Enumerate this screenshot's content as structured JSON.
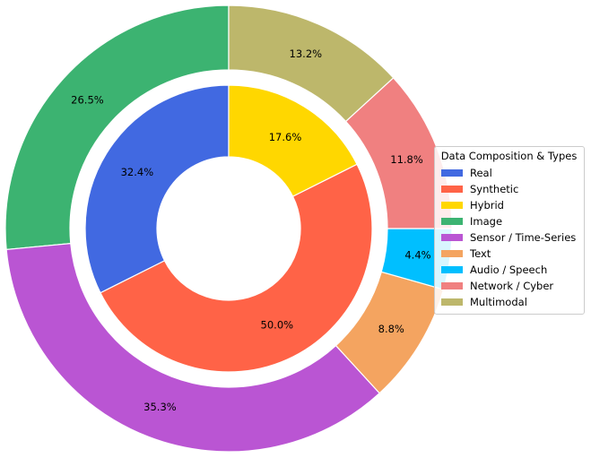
{
  "chart_data": {
    "type": "pie",
    "variant": "nested-donut",
    "title": "",
    "inner_ring": {
      "categories": [
        "Real",
        "Synthetic",
        "Hybrid"
      ],
      "values": [
        32.4,
        50.0,
        17.6
      ],
      "labels": [
        "32.4%",
        "50.0%",
        "17.6%"
      ],
      "colors": [
        "#4169E1",
        "#FF6347",
        "#FFD700"
      ]
    },
    "outer_ring": {
      "categories": [
        "Image",
        "Sensor / Time-Series",
        "Text",
        "Audio / Speech",
        "Network / Cyber",
        "Multimodal"
      ],
      "values": [
        26.5,
        35.3,
        8.8,
        4.4,
        11.8,
        13.2
      ],
      "labels": [
        "26.5%",
        "35.3%",
        "8.8%",
        "4.4%",
        "11.8%",
        "13.2%"
      ],
      "colors": [
        "#3CB371",
        "#BA55D3",
        "#F4A460",
        "#00BFFF",
        "#F08080",
        "#BDB76B"
      ]
    },
    "start_angle_deg": 90,
    "direction": "counterclockwise",
    "legend": {
      "title": "Data Composition & Types",
      "placement": "right",
      "entries": [
        {
          "label": "Real",
          "color": "#4169E1"
        },
        {
          "label": "Synthetic",
          "color": "#FF6347"
        },
        {
          "label": "Hybrid",
          "color": "#FFD700"
        },
        {
          "label": "Image",
          "color": "#3CB371"
        },
        {
          "label": "Sensor / Time-Series",
          "color": "#BA55D3"
        },
        {
          "label": "Text",
          "color": "#F4A460"
        },
        {
          "label": "Audio / Speech",
          "color": "#00BFFF"
        },
        {
          "label": "Network / Cyber",
          "color": "#F08080"
        },
        {
          "label": "Multimodal",
          "color": "#BDB76B"
        }
      ]
    }
  }
}
